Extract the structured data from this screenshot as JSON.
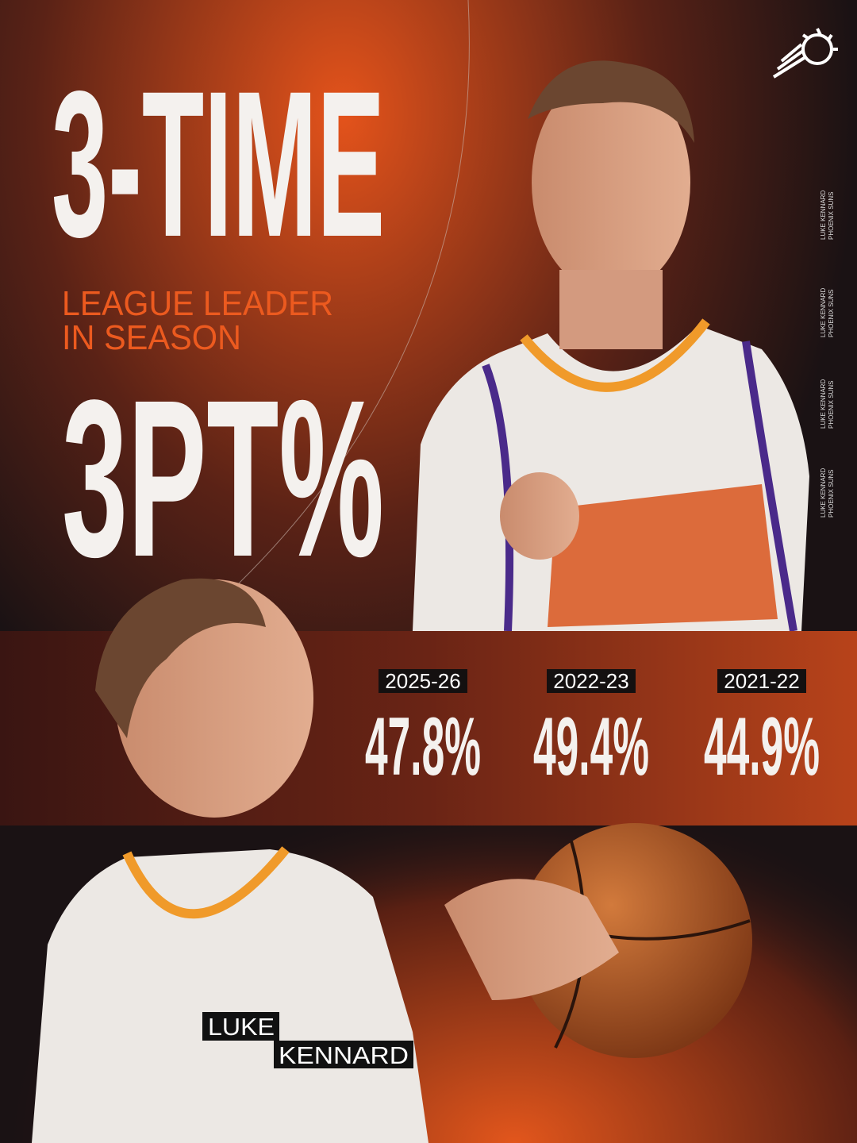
{
  "headline": {
    "top": "3-TIME",
    "sub_line1": "LEAGUE LEADER",
    "sub_line2": "IN SEASON",
    "bottom": "3PT%"
  },
  "stats": [
    {
      "season": "2025-26",
      "value": "47.8%"
    },
    {
      "season": "2022-23",
      "value": "49.4%"
    },
    {
      "season": "2021-22",
      "value": "44.9%"
    }
  ],
  "player": {
    "first": "LUKE",
    "last": "KENNARD"
  },
  "side_labels": [
    {
      "line1": "LUKE KENNARD",
      "line2": "PHOENIX SUNS"
    },
    {
      "line1": "LUKE KENNARD",
      "line2": "PHOENIX SUNS"
    },
    {
      "line1": "LUKE KENNARD",
      "line2": "PHOENIX SUNS"
    },
    {
      "line1": "LUKE KENNARD",
      "line2": "PHOENIX SUNS"
    }
  ]
}
